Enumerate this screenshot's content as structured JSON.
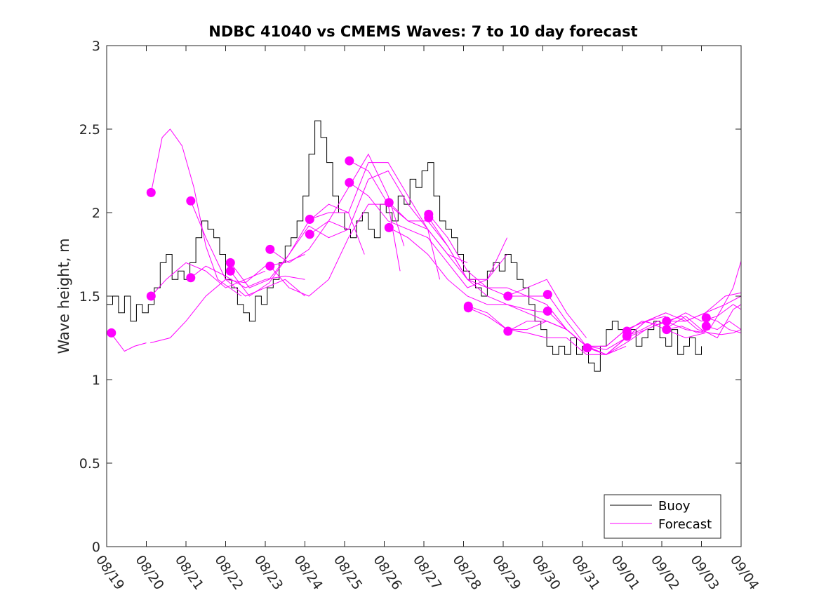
{
  "chart_data": {
    "type": "line",
    "title": "NDBC 41040 vs CMEMS Waves: 7 to 10 day forecast",
    "xlabel": "",
    "ylabel": "Wave height, m",
    "ylim": [
      0,
      3
    ],
    "yticks": [
      0,
      0.5,
      1,
      1.5,
      2,
      2.5,
      3
    ],
    "ytick_labels": [
      "0",
      "0.5",
      "1",
      "1.5",
      "2",
      "2.5",
      "3"
    ],
    "xlim_days": [
      0,
      16
    ],
    "xtick_labels": [
      "08/19",
      "08/20",
      "08/21",
      "08/22",
      "08/23",
      "08/24",
      "08/25",
      "08/26",
      "08/27",
      "08/28",
      "08/29",
      "08/30",
      "08/31",
      "09/01",
      "09/02",
      "09/03",
      "09/04"
    ],
    "legend": {
      "placement": "bottom-right",
      "entries": [
        {
          "label": "Buoy",
          "color": "#000000"
        },
        {
          "label": "Forecast",
          "color": "#ff00ff"
        }
      ]
    },
    "colors": {
      "buoy": "#000000",
      "forecast": "#ff00ff",
      "axes": "#262626"
    },
    "buoy": {
      "name": "Buoy",
      "x": [
        0,
        0.15,
        0.3,
        0.45,
        0.6,
        0.75,
        0.9,
        1.05,
        1.2,
        1.35,
        1.5,
        1.65,
        1.8,
        1.95,
        2.1,
        2.25,
        2.4,
        2.55,
        2.7,
        2.85,
        3.0,
        3.15,
        3.3,
        3.45,
        3.6,
        3.75,
        3.9,
        4.05,
        4.2,
        4.35,
        4.5,
        4.65,
        4.8,
        4.95,
        5.1,
        5.25,
        5.4,
        5.55,
        5.7,
        5.85,
        6.0,
        6.15,
        6.3,
        6.45,
        6.6,
        6.75,
        6.9,
        7.05,
        7.2,
        7.35,
        7.5,
        7.65,
        7.8,
        7.95,
        8.1,
        8.25,
        8.4,
        8.55,
        8.7,
        8.85,
        9.0,
        9.15,
        9.3,
        9.45,
        9.6,
        9.75,
        9.9,
        10.05,
        10.2,
        10.35,
        10.5,
        10.65,
        10.8,
        10.95,
        11.1,
        11.25,
        11.4,
        11.55,
        11.7,
        11.85,
        12.0,
        12.15,
        12.3,
        12.45,
        12.6,
        12.75,
        12.9,
        13.05,
        13.2,
        13.35,
        13.5,
        13.65,
        13.8,
        13.95,
        14.1,
        14.25,
        14.4,
        14.55,
        14.7,
        14.85,
        15.0
      ],
      "values": [
        1.45,
        1.5,
        1.4,
        1.5,
        1.35,
        1.45,
        1.4,
        1.45,
        1.55,
        1.7,
        1.75,
        1.6,
        1.65,
        1.6,
        1.7,
        1.85,
        1.95,
        1.9,
        1.85,
        1.75,
        1.6,
        1.55,
        1.45,
        1.4,
        1.35,
        1.5,
        1.45,
        1.55,
        1.6,
        1.7,
        1.8,
        1.85,
        1.95,
        2.1,
        2.35,
        2.55,
        2.45,
        2.3,
        2.1,
        2.0,
        1.9,
        1.85,
        1.95,
        2.0,
        1.9,
        1.85,
        2.05,
        2.0,
        1.95,
        2.1,
        2.05,
        2.2,
        2.15,
        2.25,
        2.3,
        2.1,
        1.95,
        1.9,
        1.85,
        1.75,
        1.65,
        1.6,
        1.55,
        1.5,
        1.65,
        1.7,
        1.65,
        1.75,
        1.7,
        1.6,
        1.55,
        1.45,
        1.35,
        1.3,
        1.2,
        1.15,
        1.2,
        1.15,
        1.25,
        1.15,
        1.2,
        1.1,
        1.05,
        1.2,
        1.3,
        1.35,
        1.3,
        1.25,
        1.3,
        1.2,
        1.25,
        1.3,
        1.35,
        1.25,
        1.2,
        1.3,
        1.15,
        1.2,
        1.25,
        1.15,
        1.2
      ]
    },
    "forecast_series": [
      {
        "name": "Forecast",
        "x": [
          0.1,
          0.45,
          0.7,
          1.0
        ],
        "values": [
          1.28,
          1.17,
          1.2,
          1.22
        ]
      },
      {
        "name": "Forecast",
        "x": [
          1.1,
          1.6,
          2.0,
          2.5,
          3.0,
          3.5,
          4.0,
          4.5,
          5.0
        ],
        "values": [
          1.22,
          1.25,
          1.35,
          1.5,
          1.6,
          1.58,
          1.68,
          1.7,
          1.75
        ]
      },
      {
        "name": "Forecast",
        "x": [
          1.12,
          1.4,
          1.6,
          1.9,
          2.2,
          2.5,
          2.8,
          3.1,
          3.4
        ],
        "values": [
          2.12,
          2.45,
          2.5,
          2.4,
          2.15,
          1.8,
          1.6,
          1.55,
          1.5
        ]
      },
      {
        "name": "Forecast",
        "x": [
          1.12,
          1.5,
          2.0,
          2.5,
          3.0,
          3.5,
          4.0
        ],
        "values": [
          1.5,
          1.6,
          1.7,
          1.65,
          1.55,
          1.6,
          1.65
        ]
      },
      {
        "name": "Forecast",
        "x": [
          2.12,
          2.5,
          3.0,
          3.5,
          4.0,
          4.5,
          5.0
        ],
        "values": [
          2.07,
          1.85,
          1.6,
          1.5,
          1.55,
          1.6,
          1.5
        ]
      },
      {
        "name": "Forecast",
        "x": [
          2.12,
          2.5,
          3.0,
          3.5,
          4.0,
          4.5,
          5.0
        ],
        "values": [
          1.61,
          1.68,
          1.62,
          1.55,
          1.6,
          1.62,
          1.6
        ]
      },
      {
        "name": "Forecast",
        "x": [
          3.12,
          3.6,
          4.1,
          4.6,
          5.1,
          5.6,
          6.1
        ],
        "values": [
          1.7,
          1.55,
          1.6,
          1.75,
          1.92,
          1.85,
          1.9
        ]
      },
      {
        "name": "Forecast",
        "x": [
          3.12,
          3.6,
          4.1,
          4.6,
          5.1,
          5.6,
          6.1,
          6.5
        ],
        "values": [
          1.65,
          1.5,
          1.58,
          1.75,
          1.95,
          2.05,
          2.0,
          1.75
        ]
      },
      {
        "name": "Forecast",
        "x": [
          4.12,
          4.6,
          5.1,
          5.6,
          6.1,
          6.6,
          7.1,
          7.5
        ],
        "values": [
          1.78,
          1.7,
          1.78,
          1.95,
          2.15,
          2.35,
          2.1,
          1.8
        ]
      },
      {
        "name": "Forecast",
        "x": [
          4.12,
          4.6,
          5.1,
          5.6,
          6.1,
          6.6,
          7.1,
          7.4
        ],
        "values": [
          1.68,
          1.55,
          1.5,
          1.6,
          1.85,
          2.05,
          2.05,
          1.65
        ]
      },
      {
        "name": "Forecast",
        "x": [
          5.12,
          5.6,
          6.1,
          6.6,
          7.1,
          7.6,
          8.1,
          8.4
        ],
        "values": [
          1.96,
          2.0,
          2.0,
          2.3,
          2.3,
          2.1,
          1.9,
          1.6
        ]
      },
      {
        "name": "Forecast",
        "x": [
          5.12,
          5.6,
          6.1,
          6.6,
          7.1,
          7.6,
          8.1,
          8.6,
          9.1
        ],
        "values": [
          1.87,
          1.95,
          1.9,
          2.2,
          2.25,
          2.05,
          1.9,
          1.75,
          1.7
        ]
      },
      {
        "name": "Forecast",
        "x": [
          6.12,
          6.6,
          7.1,
          7.6,
          8.1,
          8.6,
          9.1,
          9.6,
          10.1
        ],
        "values": [
          2.31,
          2.25,
          2.05,
          1.95,
          1.95,
          1.8,
          1.6,
          1.6,
          1.85
        ]
      },
      {
        "name": "Forecast",
        "x": [
          6.12,
          6.6,
          7.1,
          7.6,
          8.1,
          8.6,
          9.1,
          9.6,
          10.1
        ],
        "values": [
          2.18,
          2.1,
          1.95,
          1.9,
          1.85,
          1.7,
          1.55,
          1.6,
          1.75
        ]
      },
      {
        "name": "Forecast",
        "x": [
          7.12,
          7.6,
          8.1,
          8.6,
          9.1,
          9.6,
          10.1,
          10.6,
          11.1
        ],
        "values": [
          2.06,
          1.95,
          1.9,
          1.75,
          1.6,
          1.55,
          1.55,
          1.5,
          1.5
        ]
      },
      {
        "name": "Forecast",
        "x": [
          7.12,
          7.6,
          8.1,
          8.6,
          9.1,
          9.6,
          10.1,
          10.6,
          11.1
        ],
        "values": [
          1.91,
          1.85,
          1.75,
          1.6,
          1.5,
          1.45,
          1.45,
          1.42,
          1.4
        ]
      },
      {
        "name": "Forecast",
        "x": [
          8.12,
          8.6,
          9.1,
          9.6,
          10.1,
          10.6,
          11.1,
          11.6,
          12.1
        ],
        "values": [
          1.99,
          1.85,
          1.65,
          1.55,
          1.5,
          1.55,
          1.6,
          1.4,
          1.25
        ]
      },
      {
        "name": "Forecast",
        "x": [
          8.12,
          8.6,
          9.1,
          9.6,
          10.1,
          10.6,
          11.1,
          11.6,
          12.1
        ],
        "values": [
          1.97,
          1.8,
          1.6,
          1.5,
          1.45,
          1.4,
          1.35,
          1.3,
          1.2
        ]
      },
      {
        "name": "Forecast",
        "x": [
          9.12,
          9.6,
          10.1,
          10.6,
          11.1,
          11.6,
          12.1,
          12.6,
          13.1
        ],
        "values": [
          1.44,
          1.4,
          1.3,
          1.3,
          1.35,
          1.3,
          1.2,
          1.15,
          1.2
        ]
      },
      {
        "name": "Forecast",
        "x": [
          9.12,
          9.6,
          10.1,
          10.6,
          11.1,
          11.6,
          12.1,
          12.6,
          13.1
        ],
        "values": [
          1.43,
          1.38,
          1.3,
          1.28,
          1.25,
          1.25,
          1.15,
          1.15,
          1.25
        ]
      },
      {
        "name": "Forecast",
        "x": [
          10.12,
          10.6,
          11.1,
          11.6,
          12.1,
          12.6,
          13.1,
          13.6,
          14.1
        ],
        "values": [
          1.5,
          1.5,
          1.45,
          1.3,
          1.2,
          1.2,
          1.3,
          1.35,
          1.4
        ]
      },
      {
        "name": "Forecast",
        "x": [
          10.12,
          10.6,
          11.1,
          11.6,
          12.1,
          12.6,
          13.1,
          13.6,
          14.1
        ],
        "values": [
          1.29,
          1.35,
          1.35,
          1.3,
          1.2,
          1.18,
          1.25,
          1.35,
          1.38
        ]
      },
      {
        "name": "Forecast",
        "x": [
          11.12,
          11.6,
          12.1,
          12.6,
          13.1,
          13.6,
          14.1,
          14.6,
          15.1
        ],
        "values": [
          1.51,
          1.35,
          1.2,
          1.15,
          1.25,
          1.3,
          1.35,
          1.3,
          1.28
        ]
      },
      {
        "name": "Forecast",
        "x": [
          11.12,
          11.6,
          12.1,
          12.6,
          13.1,
          13.6,
          14.1,
          14.6,
          15.1
        ],
        "values": [
          1.41,
          1.3,
          1.2,
          1.2,
          1.3,
          1.35,
          1.3,
          1.25,
          1.28
        ]
      },
      {
        "name": "Forecast",
        "x": [
          12.12,
          12.6,
          13.1,
          13.6,
          14.1,
          14.6,
          15.1,
          15.6,
          16.0
        ],
        "values": [
          1.19,
          1.15,
          1.25,
          1.35,
          1.4,
          1.35,
          1.4,
          1.5,
          1.52
        ]
      },
      {
        "name": "Forecast",
        "x": [
          12.12,
          12.6,
          13.1,
          13.6,
          14.1,
          14.6,
          15.1,
          15.6,
          16.0
        ],
        "values": [
          1.2,
          1.15,
          1.22,
          1.3,
          1.35,
          1.35,
          1.4,
          1.45,
          1.5
        ]
      },
      {
        "name": "Forecast",
        "x": [
          13.12,
          13.5,
          13.9,
          14.2,
          14.6,
          15.0,
          15.4,
          15.8,
          16.0
        ],
        "values": [
          1.29,
          1.35,
          1.33,
          1.35,
          1.4,
          1.35,
          1.38,
          1.45,
          1.42
        ]
      },
      {
        "name": "Forecast",
        "x": [
          13.12,
          13.5,
          13.9,
          14.2,
          14.6,
          15.0,
          15.4,
          15.8,
          16.0
        ],
        "values": [
          1.26,
          1.3,
          1.35,
          1.32,
          1.38,
          1.3,
          1.25,
          1.42,
          1.45
        ]
      },
      {
        "name": "Forecast",
        "x": [
          14.12,
          14.5,
          14.9,
          15.2,
          15.5,
          15.8,
          16.0
        ],
        "values": [
          1.35,
          1.38,
          1.3,
          1.28,
          1.27,
          1.28,
          1.3
        ]
      },
      {
        "name": "Forecast",
        "x": [
          14.12,
          14.5,
          14.9,
          15.2,
          15.5,
          15.8,
          16.0
        ],
        "values": [
          1.3,
          1.32,
          1.28,
          1.3,
          1.42,
          1.55,
          1.71
        ]
      },
      {
        "name": "Forecast",
        "x": [
          15.12,
          15.4,
          15.7,
          16.0
        ],
        "values": [
          1.37,
          1.35,
          1.3,
          1.28
        ]
      },
      {
        "name": "Forecast",
        "x": [
          15.12,
          15.4,
          15.7,
          16.0
        ],
        "values": [
          1.32,
          1.3,
          1.35,
          1.3
        ]
      }
    ],
    "markers": {
      "x": [
        0.12,
        1.12,
        1.12,
        2.12,
        2.12,
        3.12,
        3.12,
        4.12,
        4.12,
        5.12,
        5.12,
        6.12,
        6.12,
        7.12,
        7.12,
        8.12,
        8.12,
        9.12,
        9.12,
        10.12,
        10.12,
        11.12,
        11.12,
        12.12,
        13.12,
        13.12,
        14.12,
        14.12,
        15.12,
        15.12
      ],
      "values": [
        1.28,
        2.12,
        1.5,
        2.07,
        1.61,
        1.7,
        1.65,
        1.78,
        1.68,
        1.96,
        1.87,
        2.31,
        2.18,
        2.06,
        1.91,
        1.99,
        1.97,
        1.44,
        1.43,
        1.5,
        1.29,
        1.51,
        1.41,
        1.19,
        1.29,
        1.26,
        1.35,
        1.3,
        1.37,
        1.32
      ]
    }
  }
}
